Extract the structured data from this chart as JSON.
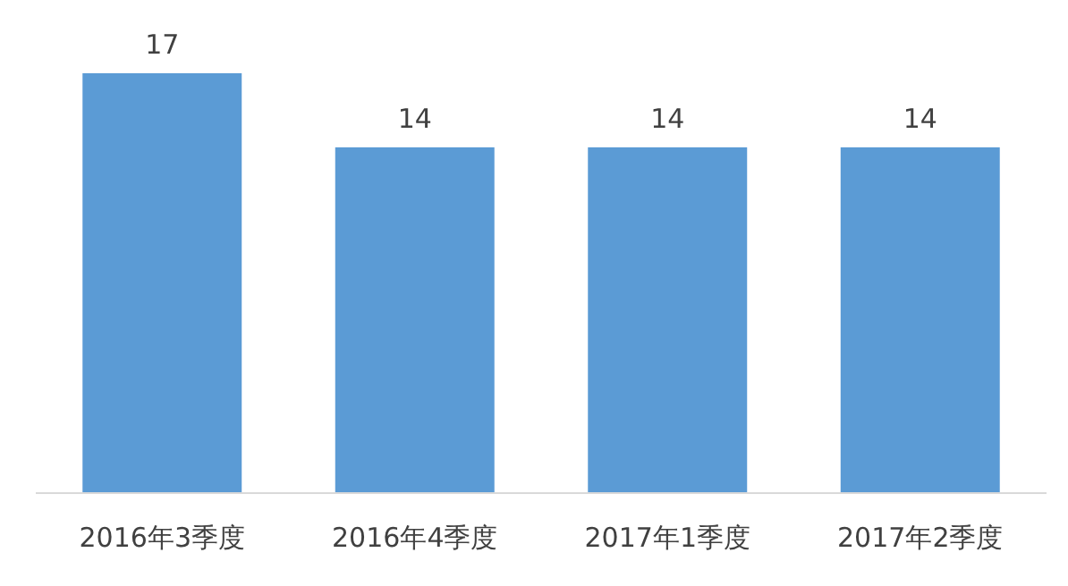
{
  "chart_data": {
    "type": "bar",
    "categories": [
      "2016年3季度",
      "2016年4季度",
      "2017年1季度",
      "2017年2季度"
    ],
    "values": [
      17,
      14,
      14,
      14
    ],
    "color": "#5b9bd5",
    "data_labels": true
  }
}
